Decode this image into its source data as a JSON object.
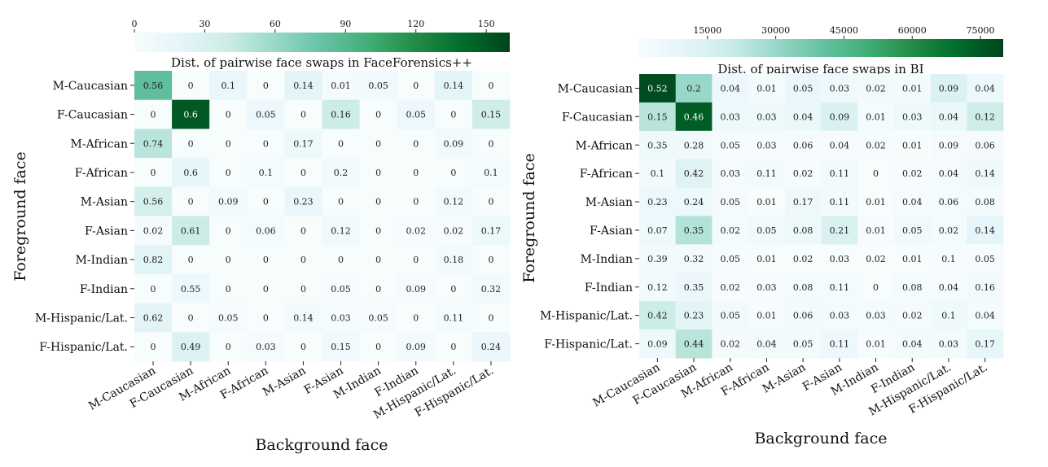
{
  "chart_data": [
    {
      "type": "heatmap",
      "title": "Dist. of pairwise face swaps in FaceForensics++",
      "xlabel": "Background face",
      "ylabel": "Foreground face",
      "x_categories": [
        "M-Caucasian",
        "F-Caucasian",
        "M-African",
        "F-African",
        "M-Asian",
        "F-Asian",
        "M-Indian",
        "F-Indian",
        "M-Hispanic/Lat.",
        "F-Hispanic/Lat."
      ],
      "y_categories": [
        "M-Caucasian",
        "F-Caucasian",
        "M-African",
        "F-African",
        "M-Asian",
        "F-Asian",
        "M-Indian",
        "F-Indian",
        "M-Hispanic/Lat.",
        "F-Hispanic/Lat."
      ],
      "values": [
        [
          0.56,
          0,
          0.1,
          0,
          0.14,
          0.01,
          0.05,
          0,
          0.14,
          0
        ],
        [
          0,
          0.6,
          0,
          0.05,
          0,
          0.16,
          0,
          0.05,
          0,
          0.15
        ],
        [
          0.74,
          0,
          0,
          0,
          0.17,
          0,
          0,
          0,
          0.09,
          0
        ],
        [
          0,
          0.6,
          0,
          0.1,
          0,
          0.2,
          0,
          0,
          0,
          0.1
        ],
        [
          0.56,
          0,
          0.09,
          0,
          0.23,
          0,
          0,
          0,
          0.12,
          0
        ],
        [
          0.02,
          0.61,
          0,
          0.06,
          0,
          0.12,
          0,
          0.02,
          0.02,
          0.17
        ],
        [
          0.82,
          0,
          0,
          0,
          0,
          0,
          0,
          0,
          0.18,
          0
        ],
        [
          0,
          0.55,
          0,
          0,
          0,
          0.05,
          0,
          0.09,
          0,
          0.32
        ],
        [
          0.62,
          0,
          0.05,
          0,
          0.14,
          0.03,
          0.05,
          0,
          0.11,
          0
        ],
        [
          0,
          0.49,
          0,
          0.03,
          0,
          0.15,
          0,
          0.09,
          0,
          0.24
        ]
      ],
      "counts": [
        [
          84,
          0,
          15,
          0,
          21,
          2,
          8,
          0,
          21,
          0
        ],
        [
          0,
          150,
          0,
          12,
          0,
          40,
          0,
          12,
          0,
          37
        ],
        [
          47,
          0,
          0,
          0,
          11,
          0,
          0,
          0,
          6,
          0
        ],
        [
          0,
          18,
          0,
          3,
          0,
          6,
          0,
          0,
          0,
          3
        ],
        [
          33,
          0,
          5,
          0,
          14,
          0,
          0,
          0,
          7,
          0
        ],
        [
          2,
          40,
          0,
          4,
          0,
          8,
          0,
          1,
          1,
          11
        ],
        [
          23,
          0,
          0,
          0,
          0,
          0,
          0,
          0,
          5,
          0
        ],
        [
          0,
          12,
          0,
          0,
          0,
          1,
          0,
          2,
          0,
          7
        ],
        [
          22,
          0,
          2,
          0,
          5,
          1,
          2,
          0,
          4,
          0
        ],
        [
          0,
          27,
          0,
          2,
          0,
          8,
          0,
          5,
          0,
          13
        ]
      ],
      "colorbar": {
        "min": 0,
        "max": 160,
        "ticks": [
          0,
          30,
          60,
          90,
          120,
          150
        ],
        "tick_labels": [
          "0",
          "30",
          "60",
          "90",
          "120",
          "150"
        ],
        "placement": "top"
      },
      "colormap": [
        "#f7fcfd",
        "#e5f5f9",
        "#ccece6",
        "#99d8c9",
        "#66c2a4",
        "#41ae76",
        "#238b45",
        "#006d2c",
        "#00441b"
      ]
    },
    {
      "type": "heatmap",
      "title": "Dist. of pairwise face swaps in BI",
      "xlabel": "Background face",
      "ylabel": "Foreground face",
      "x_categories": [
        "M-Caucasian",
        "F-Caucasian",
        "M-African",
        "F-African",
        "M-Asian",
        "F-Asian",
        "M-Indian",
        "F-Indian",
        "M-Hispanic/Lat.",
        "F-Hispanic/Lat."
      ],
      "y_categories": [
        "M-Caucasian",
        "F-Caucasian",
        "M-African",
        "F-African",
        "M-Asian",
        "F-Asian",
        "M-Indian",
        "F-Indian",
        "M-Hispanic/Lat.",
        "F-Hispanic/Lat."
      ],
      "values": [
        [
          0.52,
          0.2,
          0.04,
          0.01,
          0.05,
          0.03,
          0.02,
          0.01,
          0.09,
          0.04
        ],
        [
          0.15,
          0.46,
          0.03,
          0.03,
          0.04,
          0.09,
          0.01,
          0.03,
          0.04,
          0.12
        ],
        [
          0.35,
          0.28,
          0.05,
          0.03,
          0.06,
          0.04,
          0.02,
          0.01,
          0.09,
          0.06
        ],
        [
          0.1,
          0.42,
          0.03,
          0.11,
          0.02,
          0.11,
          0,
          0.02,
          0.04,
          0.14
        ],
        [
          0.23,
          0.24,
          0.05,
          0.01,
          0.17,
          0.11,
          0.01,
          0.04,
          0.06,
          0.08
        ],
        [
          0.07,
          0.35,
          0.02,
          0.05,
          0.08,
          0.21,
          0.01,
          0.05,
          0.02,
          0.14
        ],
        [
          0.39,
          0.32,
          0.05,
          0.01,
          0.02,
          0.03,
          0.02,
          0.01,
          0.1,
          0.05
        ],
        [
          0.12,
          0.35,
          0.02,
          0.03,
          0.08,
          0.11,
          0,
          0.08,
          0.04,
          0.16
        ],
        [
          0.42,
          0.23,
          0.05,
          0.01,
          0.06,
          0.03,
          0.03,
          0.02,
          0.1,
          0.04
        ],
        [
          0.09,
          0.44,
          0.02,
          0.04,
          0.05,
          0.11,
          0.01,
          0.04,
          0.03,
          0.17
        ]
      ],
      "counts": [
        [
          78000,
          30000,
          6000,
          1500,
          7500,
          4500,
          3000,
          1500,
          13500,
          6000
        ],
        [
          24000,
          74000,
          4800,
          4800,
          6400,
          14400,
          1600,
          4800,
          6400,
          19200
        ],
        [
          5000,
          4000,
          700,
          430,
          860,
          570,
          290,
          140,
          1300,
          860
        ],
        [
          3000,
          12600,
          900,
          3300,
          600,
          3300,
          0,
          600,
          1200,
          4200
        ],
        [
          6000,
          6200,
          1300,
          260,
          4400,
          2900,
          260,
          1000,
          1600,
          2100
        ],
        [
          5000,
          25000,
          1400,
          3600,
          5700,
          15000,
          700,
          3600,
          1400,
          10000
        ],
        [
          3000,
          2400,
          380,
          80,
          150,
          230,
          150,
          80,
          760,
          380
        ],
        [
          2300,
          6700,
          380,
          570,
          1500,
          2100,
          0,
          1500,
          760,
          3000
        ],
        [
          20000,
          11000,
          2400,
          480,
          2900,
          1400,
          1400,
          960,
          4800,
          1900
        ],
        [
          5000,
          24000,
          1100,
          2200,
          2700,
          6000,
          540,
          2200,
          1600,
          9200
        ]
      ],
      "colorbar": {
        "min": 0,
        "max": 80000,
        "ticks": [
          15000,
          30000,
          45000,
          60000,
          75000
        ],
        "tick_labels": [
          "15000",
          "30000",
          "45000",
          "60000",
          "75000"
        ],
        "placement": "top"
      },
      "colormap": [
        "#f7fcfd",
        "#e5f5f9",
        "#ccece6",
        "#99d8c9",
        "#66c2a4",
        "#41ae76",
        "#238b45",
        "#006d2c",
        "#00441b"
      ]
    }
  ]
}
